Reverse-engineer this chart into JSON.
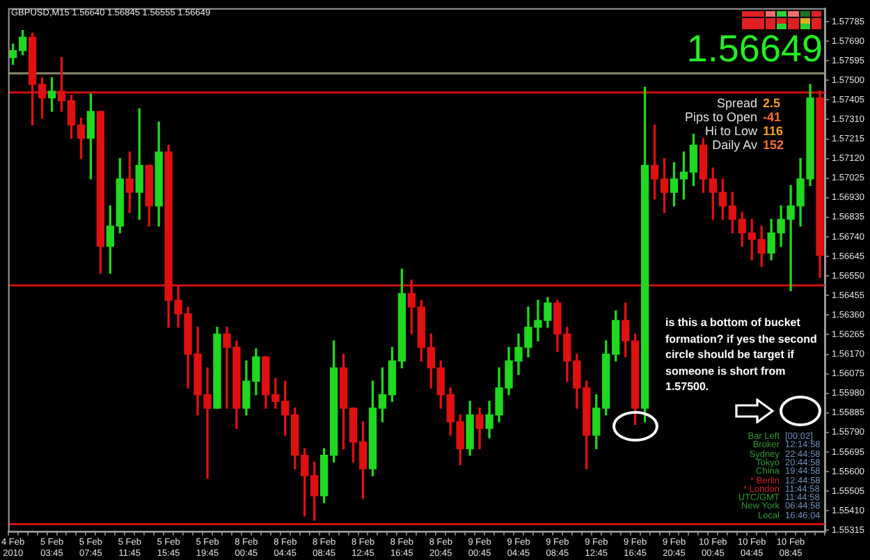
{
  "chart_data": {
    "type": "candlestick",
    "title": "GBPUSD,M15  1.56640 1.56845 1.56555 1.56649",
    "categories": [
      "4 Feb 2010",
      null,
      null,
      null,
      "5 Feb 03:45",
      null,
      null,
      null,
      "5 Feb 07:45",
      null,
      null,
      null,
      "5 Feb 11:45",
      null,
      null,
      null,
      "5 Feb 15:45",
      null,
      null,
      null,
      "5 Feb 19:45",
      null,
      null,
      null,
      "8 Feb 00:45",
      null,
      null,
      null,
      "8 Feb 04:45",
      null,
      null,
      null,
      "8 Feb 08:45",
      null,
      null,
      null,
      "8 Feb 12:45",
      null,
      null,
      null,
      "8 Feb 16:45",
      null,
      null,
      null,
      "8 Feb 20:45",
      null,
      null,
      null,
      "9 Feb 00:45",
      null,
      null,
      null,
      "9 Feb 04:45",
      null,
      null,
      null,
      "9 Feb 08:45",
      null,
      null,
      null,
      "9 Feb 12:45",
      null,
      null,
      null,
      "9 Feb 16:45",
      null,
      null,
      null,
      "9 Feb 20:45",
      null,
      null,
      null,
      "10 Feb 00:45",
      null,
      null,
      null,
      "10 Feb 04:45",
      null,
      null,
      null,
      "10 Feb 08:45",
      null,
      null,
      null
    ],
    "ohlc": [
      [
        1.57611,
        1.57676,
        1.57578,
        1.57644
      ],
      [
        1.57644,
        1.57742,
        1.57624,
        1.57709
      ],
      [
        1.57709,
        1.57729,
        1.57283,
        1.5748
      ],
      [
        1.5748,
        1.57513,
        1.57316,
        1.57414
      ],
      [
        1.57414,
        1.57513,
        1.57349,
        1.57447
      ],
      [
        1.57447,
        1.57611,
        1.57349,
        1.57401
      ],
      [
        1.57401,
        1.57428,
        1.57218,
        1.57283
      ],
      [
        1.57283,
        1.57316,
        1.5712,
        1.57218
      ],
      [
        1.57218,
        1.57434,
        1.57021,
        1.57349
      ],
      [
        1.57349,
        1.57349,
        1.56563,
        1.56694
      ],
      [
        1.56694,
        1.5689,
        1.56563,
        1.56792
      ],
      [
        1.56792,
        1.5712,
        1.56759,
        1.57021
      ],
      [
        1.57021,
        1.57152,
        1.56858,
        1.56956
      ],
      [
        1.56956,
        1.57362,
        1.56825,
        1.57087
      ],
      [
        1.57087,
        1.57087,
        1.56792,
        1.5689
      ],
      [
        1.5689,
        1.57297,
        1.56792,
        1.57152
      ],
      [
        1.57152,
        1.57185,
        1.56301,
        1.56432
      ],
      [
        1.56432,
        1.56497,
        1.56301,
        1.56366
      ],
      [
        1.56366,
        1.56399,
        1.56006,
        1.5617
      ],
      [
        1.5617,
        1.56301,
        1.55875,
        1.55973
      ],
      [
        1.55973,
        1.56104,
        1.55567,
        1.55908
      ],
      [
        1.55908,
        1.56301,
        1.55908,
        1.56268
      ],
      [
        1.56268,
        1.56301,
        1.55908,
        1.56203
      ],
      [
        1.56203,
        1.56235,
        1.5581,
        1.55908
      ],
      [
        1.55908,
        1.56137,
        1.55875,
        1.56039
      ],
      [
        1.56039,
        1.56196,
        1.55973,
        1.56157
      ],
      [
        1.56157,
        1.56157,
        1.55908,
        1.55973
      ],
      [
        1.55973,
        1.56052,
        1.55908,
        1.55941
      ],
      [
        1.55941,
        1.56039,
        1.55777,
        1.55875
      ],
      [
        1.55875,
        1.55908,
        1.55613,
        1.55679
      ],
      [
        1.55679,
        1.55711,
        1.55384,
        1.5558
      ],
      [
        1.5558,
        1.55646,
        1.55364,
        1.55482
      ],
      [
        1.55482,
        1.55711,
        1.55449,
        1.55679
      ],
      [
        1.55679,
        1.56235,
        1.55646,
        1.56104
      ],
      [
        1.56104,
        1.5617,
        1.55711,
        1.55908
      ],
      [
        1.55908,
        1.55908,
        1.55646,
        1.55744
      ],
      [
        1.55744,
        1.55842,
        1.55469,
        1.55613
      ],
      [
        1.55613,
        1.56039,
        1.5558,
        1.55908
      ],
      [
        1.55908,
        1.56104,
        1.55842,
        1.55973
      ],
      [
        1.55973,
        1.56203,
        1.55941,
        1.56137
      ],
      [
        1.56137,
        1.56583,
        1.56104,
        1.56465
      ],
      [
        1.56465,
        1.5653,
        1.56268,
        1.56399
      ],
      [
        1.56399,
        1.56432,
        1.56137,
        1.56203
      ],
      [
        1.56203,
        1.56268,
        1.56006,
        1.56104
      ],
      [
        1.56104,
        1.56137,
        1.55908,
        1.55973
      ],
      [
        1.55973,
        1.56006,
        1.55777,
        1.55842
      ],
      [
        1.55842,
        1.55875,
        1.55633,
        1.55711
      ],
      [
        1.55711,
        1.55941,
        1.55679,
        1.55875
      ],
      [
        1.55875,
        1.55908,
        1.55711,
        1.5581
      ],
      [
        1.5581,
        1.55941,
        1.55764,
        1.55875
      ],
      [
        1.55875,
        1.56104,
        1.55842,
        1.56006
      ],
      [
        1.56006,
        1.56203,
        1.55973,
        1.56137
      ],
      [
        1.56137,
        1.56268,
        1.56072,
        1.56203
      ],
      [
        1.56203,
        1.56399,
        1.56157,
        1.56301
      ],
      [
        1.56301,
        1.56432,
        1.56235,
        1.56334
      ],
      [
        1.56334,
        1.56445,
        1.56301,
        1.56419
      ],
      [
        1.56419,
        1.56432,
        1.56183,
        1.56268
      ],
      [
        1.56268,
        1.56301,
        1.56039,
        1.56137
      ],
      [
        1.56137,
        1.5617,
        1.55908,
        1.56006
      ],
      [
        1.56006,
        1.56039,
        1.55613,
        1.55777
      ],
      [
        1.55777,
        1.55973,
        1.55711,
        1.55908
      ],
      [
        1.55908,
        1.56235,
        1.55875,
        1.5617
      ],
      [
        1.5617,
        1.5638,
        1.56137,
        1.56334
      ],
      [
        1.56334,
        1.56419,
        1.56157,
        1.56235
      ],
      [
        1.56235,
        1.56268,
        1.55829,
        1.55908
      ],
      [
        1.55908,
        1.57467,
        1.55842,
        1.57087
      ],
      [
        1.57087,
        1.57283,
        1.56923,
        1.57021
      ],
      [
        1.57021,
        1.5712,
        1.56858,
        1.56956
      ],
      [
        1.56956,
        1.571,
        1.5689,
        1.57021
      ],
      [
        1.57021,
        1.57152,
        1.56923,
        1.57054
      ],
      [
        1.57054,
        1.57238,
        1.56989,
        1.57185
      ],
      [
        1.57185,
        1.57218,
        1.56956,
        1.57021
      ],
      [
        1.57021,
        1.57074,
        1.56825,
        1.56956
      ],
      [
        1.56956,
        1.57021,
        1.56825,
        1.5689
      ],
      [
        1.5689,
        1.56956,
        1.56759,
        1.56825
      ],
      [
        1.56825,
        1.56858,
        1.56694,
        1.56759
      ],
      [
        1.56759,
        1.56825,
        1.56628,
        1.56727
      ],
      [
        1.56727,
        1.56792,
        1.56596,
        1.56661
      ],
      [
        1.56661,
        1.56825,
        1.56628,
        1.56759
      ],
      [
        1.56759,
        1.5689,
        1.56694,
        1.56825
      ],
      [
        1.56825,
        1.56989,
        1.56478,
        1.5689
      ],
      [
        1.5689,
        1.5712,
        1.56792,
        1.57021
      ],
      [
        1.57021,
        1.5748,
        1.56989,
        1.57414
      ],
      [
        1.57414,
        1.57447,
        1.56543,
        1.56649
      ]
    ],
    "colors": [
      "#1fd81f",
      "#1fd81f",
      "#e01010",
      "#e01010",
      "#1fd81f",
      "#e01010",
      "#e01010",
      "#e01010",
      "#1fd81f",
      "#e01010",
      "#1fd81f",
      "#1fd81f",
      "#e01010",
      "#1fd81f",
      "#e01010",
      "#1fd81f",
      "#e01010",
      "#e01010",
      "#e01010",
      "#e01010",
      "#e01010",
      "#1fd81f",
      "#e01010",
      "#e01010",
      "#1fd81f",
      "#1fd81f",
      "#e01010",
      "#e01010",
      "#e01010",
      "#e01010",
      "#e01010",
      "#e01010",
      "#1fd81f",
      "#1fd81f",
      "#e01010",
      "#e01010",
      "#e01010",
      "#1fd81f",
      "#1fd81f",
      "#1fd81f",
      "#1fd81f",
      "#e01010",
      "#e01010",
      "#e01010",
      "#e01010",
      "#e01010",
      "#e01010",
      "#1fd81f",
      "#e01010",
      "#1fd81f",
      "#1fd81f",
      "#1fd81f",
      "#1fd81f",
      "#1fd81f",
      "#1fd81f",
      "#1fd81f",
      "#e01010",
      "#e01010",
      "#e01010",
      "#e01010",
      "#1fd81f",
      "#1fd81f",
      "#1fd81f",
      "#e01010",
      "#e01010",
      "#1fd81f",
      "#e01010",
      "#e01010",
      "#1fd81f",
      "#1fd81f",
      "#1fd81f",
      "#e01010",
      "#e01010",
      "#e01010",
      "#e01010",
      "#e01010",
      "#e01010",
      "#e01010",
      "#1fd81f",
      "#1fd81f",
      "#1fd81f",
      "#1fd81f",
      "#1fd81f",
      "#e01010"
    ],
    "ylim": [
      1.5531,
      1.5785
    ],
    "yticks": [
      1.55315,
      {
        "value": 1.5541,
        "label": "1.55410"
      },
      1.55505,
      {
        "value": 1.556,
        "label": "1.55600"
      },
      1.55695,
      {
        "value": 1.5579,
        "label": "1.55790"
      },
      1.55885,
      {
        "value": 1.5598,
        "label": "1.55980"
      },
      1.56075,
      {
        "value": 1.5617,
        "label": "1.56170"
      },
      1.56265,
      {
        "value": 1.5636,
        "label": "1.56360"
      },
      1.56455,
      {
        "value": 1.5655,
        "label": "1.56550"
      },
      1.56645,
      {
        "value": 1.5674,
        "label": "1.56740"
      },
      1.56835,
      {
        "value": 1.5693,
        "label": "1.56930"
      },
      1.57025,
      {
        "value": 1.5712,
        "label": "1.57120"
      },
      1.57215,
      {
        "value": 1.5731,
        "label": "1.57310"
      },
      1.57405,
      {
        "value": 1.575,
        "label": "1.57500"
      },
      1.57595,
      {
        "value": 1.5769,
        "label": "1.57690"
      },
      1.57785
    ],
    "ref_lines": [
      {
        "axis": "y",
        "value": 1.57534,
        "color": "#8c8c6e"
      },
      {
        "axis": "y",
        "value": 1.57441,
        "color": "#d01010"
      },
      {
        "axis": "y",
        "value": 1.56504,
        "color": "#d01010"
      },
      {
        "axis": "y",
        "value": 1.55345,
        "color": "#d01010"
      }
    ],
    "annotations": [
      "1.56649",
      "Spread",
      "2.5",
      "Pips to Open",
      "-41",
      "Hi to Low",
      "116",
      "Daily Av",
      "152",
      "is this a bottom of bucket formation? if yes the second circle should be target if someone is short from 1.57500.",
      "Bar Left",
      "[00:02]",
      "Broker",
      "12:14:58",
      "Sydney",
      "22:44:58",
      "Tokyo",
      "20:44:58",
      "China",
      "19:44:58",
      "* Berlin",
      "12:44:58",
      "* London",
      "11:44:58",
      "UTC/GMT",
      "11:44:58",
      "New York",
      "06:44:58",
      "Local",
      "16:46:04"
    ]
  }
}
